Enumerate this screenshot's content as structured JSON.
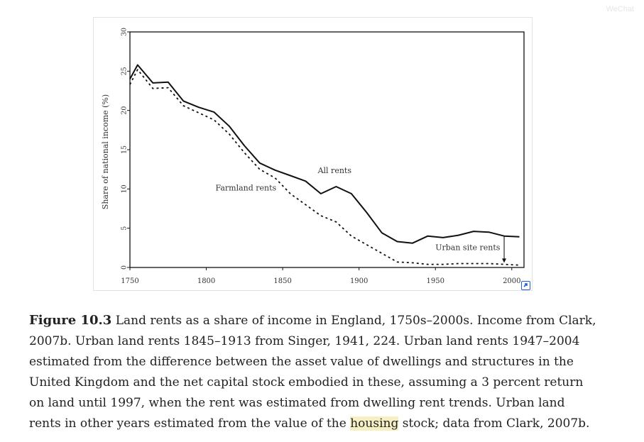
{
  "watermark": "WeChat",
  "chart_data": {
    "type": "line",
    "ylabel": "Share of national income (%)",
    "xlabel": "",
    "xlim": [
      1750,
      2008
    ],
    "ylim": [
      0,
      30
    ],
    "xticks": [
      1750,
      1800,
      1850,
      1900,
      1950,
      2000
    ],
    "yticks": [
      0,
      5,
      10,
      15,
      20,
      25,
      30
    ],
    "series": [
      {
        "name": "All rents",
        "style": "solid",
        "x": [
          1750,
          1755,
          1765,
          1775,
          1785,
          1795,
          1805,
          1815,
          1825,
          1835,
          1845,
          1855,
          1865,
          1875,
          1885,
          1895,
          1905,
          1915,
          1925,
          1935,
          1945,
          1955,
          1965,
          1975,
          1985,
          1995,
          2005
        ],
        "y": [
          24.0,
          25.8,
          23.5,
          23.6,
          21.2,
          20.4,
          19.8,
          18.0,
          15.5,
          13.3,
          12.4,
          11.7,
          11.0,
          9.4,
          10.3,
          9.4,
          7.0,
          4.4,
          3.3,
          3.1,
          4.0,
          3.8,
          4.1,
          4.6,
          4.5,
          4.0,
          3.9
        ]
      },
      {
        "name": "Farmland rents",
        "style": "dashed",
        "x": [
          1750,
          1755,
          1765,
          1775,
          1785,
          1795,
          1805,
          1815,
          1825,
          1835,
          1845,
          1855,
          1865,
          1875,
          1885,
          1895,
          1905,
          1915,
          1925,
          1935,
          1945,
          1955,
          1965,
          1975,
          1985,
          1995,
          2005
        ],
        "y": [
          23.3,
          25.2,
          22.8,
          22.9,
          20.6,
          19.7,
          18.8,
          17.0,
          14.6,
          12.5,
          11.4,
          9.4,
          8.0,
          6.6,
          5.8,
          4.0,
          2.9,
          1.8,
          0.7,
          0.6,
          0.4,
          0.4,
          0.5,
          0.5,
          0.5,
          0.4,
          0.3
        ]
      }
    ],
    "annotations": [
      {
        "text": "All rents",
        "x": 1873,
        "y": 12.0
      },
      {
        "text": "Farmland rents",
        "x": 1806,
        "y": 9.8
      },
      {
        "text": "Urban site rents",
        "x": 1950,
        "y": 2.2
      }
    ],
    "arrow": {
      "x": 1995,
      "y_from": 4.0,
      "y_to": 0.6
    }
  },
  "caption": {
    "label": "Figure 10.3",
    "before_highlight": " Land rents as a share of income in England, 1750s–2000s. Income from Clark, 2007b. Urban land rents 1845–1913 from Singer, 1941, 224. Urban land rents 1947–2004 estimated from the difference between the asset value of dwellings and structures in the United Kingdom and the net capital stock embodied in these, assuming a 3 percent return on land until 1997, when the rent was estimated from dwelling rent trends. Urban land rents in other years estimated from the value of the ",
    "highlight": "housing",
    "after_highlight": " stock; data from Clark, 2007b."
  }
}
